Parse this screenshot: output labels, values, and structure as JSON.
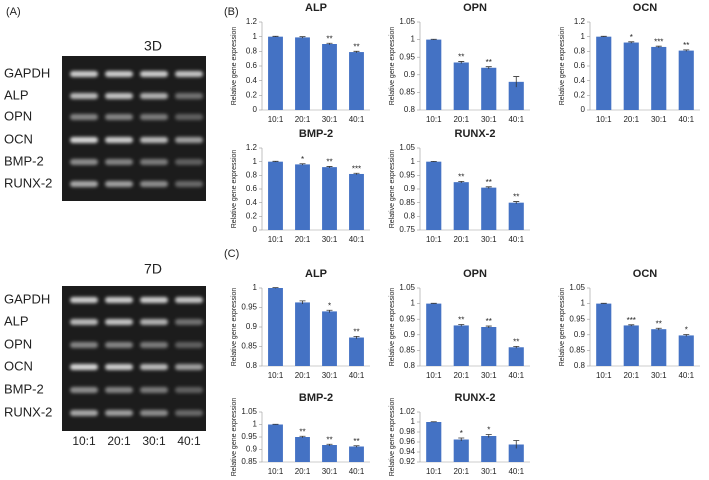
{
  "panels": {
    "a": "(A)",
    "b": "(B)",
    "c": "(C)"
  },
  "gels": [
    {
      "title": "3D",
      "genes": [
        "GAPDH",
        "ALP",
        "OPN",
        "OCN",
        "BMP-2",
        "RUNX-2"
      ]
    },
    {
      "title": "7D",
      "genes": [
        "GAPDH",
        "ALP",
        "OPN",
        "OCN",
        "BMP-2",
        "RUNX-2"
      ],
      "lanes": [
        "10:1",
        "20:1",
        "30:1",
        "40:1"
      ]
    }
  ],
  "chart_data": [
    {
      "type": "bar",
      "title": "ALP",
      "ylabel": "Relative gene expression",
      "categories": [
        "10:1",
        "20:1",
        "30:1",
        "40:1"
      ],
      "values": [
        1.0,
        0.99,
        0.9,
        0.79
      ],
      "errors": [
        0.005,
        0.01,
        0.01,
        0.01
      ],
      "significance": [
        null,
        null,
        "**",
        "**"
      ],
      "color": "#4472c4",
      "ylim": [
        0,
        1.2
      ],
      "yticks": [
        0,
        0.2,
        0.4,
        0.6,
        0.8,
        1,
        1.2
      ]
    },
    {
      "type": "bar",
      "title": "OPN",
      "ylabel": "Relative gene expression",
      "categories": [
        "10:1",
        "20:1",
        "30:1",
        "40:1"
      ],
      "values": [
        1.0,
        0.935,
        0.92,
        0.88
      ],
      "errors": [
        0.001,
        0.003,
        0.003,
        0.015
      ],
      "significance": [
        null,
        "**",
        "**",
        null
      ],
      "color": "#4472c4",
      "ylim": [
        0.8,
        1.05
      ],
      "yticks": [
        0.8,
        0.85,
        0.9,
        0.95,
        1,
        1.05
      ]
    },
    {
      "type": "bar",
      "title": "OCN",
      "ylabel": "Relative gene expression",
      "categories": [
        "10:1",
        "20:1",
        "30:1",
        "40:1"
      ],
      "values": [
        1.0,
        0.92,
        0.86,
        0.81
      ],
      "errors": [
        0.005,
        0.01,
        0.01,
        0.01
      ],
      "significance": [
        null,
        "*",
        "***",
        "**"
      ],
      "color": "#4472c4",
      "ylim": [
        0,
        1.2
      ],
      "yticks": [
        0,
        0.2,
        0.4,
        0.6,
        0.8,
        1,
        1.2
      ]
    },
    {
      "type": "bar",
      "title": "BMP-2",
      "ylabel": "Relative gene expression",
      "categories": [
        "10:1",
        "20:1",
        "30:1",
        "40:1"
      ],
      "values": [
        1.0,
        0.96,
        0.92,
        0.82
      ],
      "errors": [
        0.005,
        0.01,
        0.01,
        0.01
      ],
      "significance": [
        null,
        "*",
        "**",
        "***"
      ],
      "color": "#4472c4",
      "ylim": [
        0,
        1.2
      ],
      "yticks": [
        0,
        0.2,
        0.4,
        0.6,
        0.8,
        1,
        1.2
      ]
    },
    {
      "type": "bar",
      "title": "RUNX-2",
      "ylabel": "Relative gene expression",
      "categories": [
        "10:1",
        "20:1",
        "30:1",
        "40:1"
      ],
      "values": [
        1.0,
        0.925,
        0.905,
        0.85
      ],
      "errors": [
        0.001,
        0.003,
        0.003,
        0.004
      ],
      "significance": [
        null,
        "**",
        "**",
        "**"
      ],
      "color": "#4472c4",
      "ylim": [
        0.75,
        1.05
      ],
      "yticks": [
        0.75,
        0.8,
        0.85,
        0.9,
        0.95,
        1,
        1.05
      ]
    },
    {
      "type": "bar",
      "title": "ALP",
      "ylabel": "Relative gene expression",
      "categories": [
        "10:1",
        "20:1",
        "30:1",
        "40:1"
      ],
      "values": [
        1.0,
        0.963,
        0.94,
        0.873
      ],
      "errors": [
        0.001,
        0.004,
        0.003,
        0.003
      ],
      "significance": [
        null,
        null,
        "*",
        "**"
      ],
      "color": "#4472c4",
      "ylim": [
        0.8,
        1.0
      ],
      "yticks": [
        0.8,
        0.85,
        0.9,
        0.95,
        1
      ]
    },
    {
      "type": "bar",
      "title": "OPN",
      "ylabel": "Relative gene expression",
      "categories": [
        "10:1",
        "20:1",
        "30:1",
        "40:1"
      ],
      "values": [
        1.0,
        0.93,
        0.925,
        0.86
      ],
      "errors": [
        0.001,
        0.003,
        0.003,
        0.003
      ],
      "significance": [
        null,
        "**",
        "**",
        "**"
      ],
      "color": "#4472c4",
      "ylim": [
        0.8,
        1.05
      ],
      "yticks": [
        0.8,
        0.85,
        0.9,
        0.95,
        1,
        1.05
      ]
    },
    {
      "type": "bar",
      "title": "OCN",
      "ylabel": "Relative gene expression",
      "categories": [
        "10:1",
        "20:1",
        "30:1",
        "40:1"
      ],
      "values": [
        1.0,
        0.93,
        0.918,
        0.898
      ],
      "errors": [
        0.001,
        0.002,
        0.003,
        0.003
      ],
      "significance": [
        null,
        "***",
        "**",
        "*"
      ],
      "color": "#4472c4",
      "ylim": [
        0.8,
        1.05
      ],
      "yticks": [
        0.8,
        0.85,
        0.9,
        0.95,
        1,
        1.05
      ]
    },
    {
      "type": "bar",
      "title": "BMP-2",
      "ylabel": "Relative gene expression",
      "categories": [
        "10:1",
        "20:1",
        "30:1",
        "40:1"
      ],
      "values": [
        1.0,
        0.95,
        0.918,
        0.912
      ],
      "errors": [
        0.001,
        0.003,
        0.003,
        0.003
      ],
      "significance": [
        null,
        "**",
        "**",
        "**"
      ],
      "color": "#4472c4",
      "ylim": [
        0.85,
        1.05
      ],
      "yticks": [
        0.85,
        0.9,
        0.95,
        1,
        1.05
      ]
    },
    {
      "type": "bar",
      "title": "RUNX-2",
      "ylabel": "Relative gene expression",
      "categories": [
        "10:1",
        "20:1",
        "30:1",
        "40:1"
      ],
      "values": [
        1.0,
        0.965,
        0.972,
        0.955
      ],
      "errors": [
        0.0005,
        0.003,
        0.003,
        0.008
      ],
      "significance": [
        null,
        "*",
        "*",
        null
      ],
      "color": "#4472c4",
      "ylim": [
        0.92,
        1.02
      ],
      "yticks": [
        0.92,
        0.94,
        0.96,
        0.98,
        1,
        1.02
      ]
    }
  ]
}
